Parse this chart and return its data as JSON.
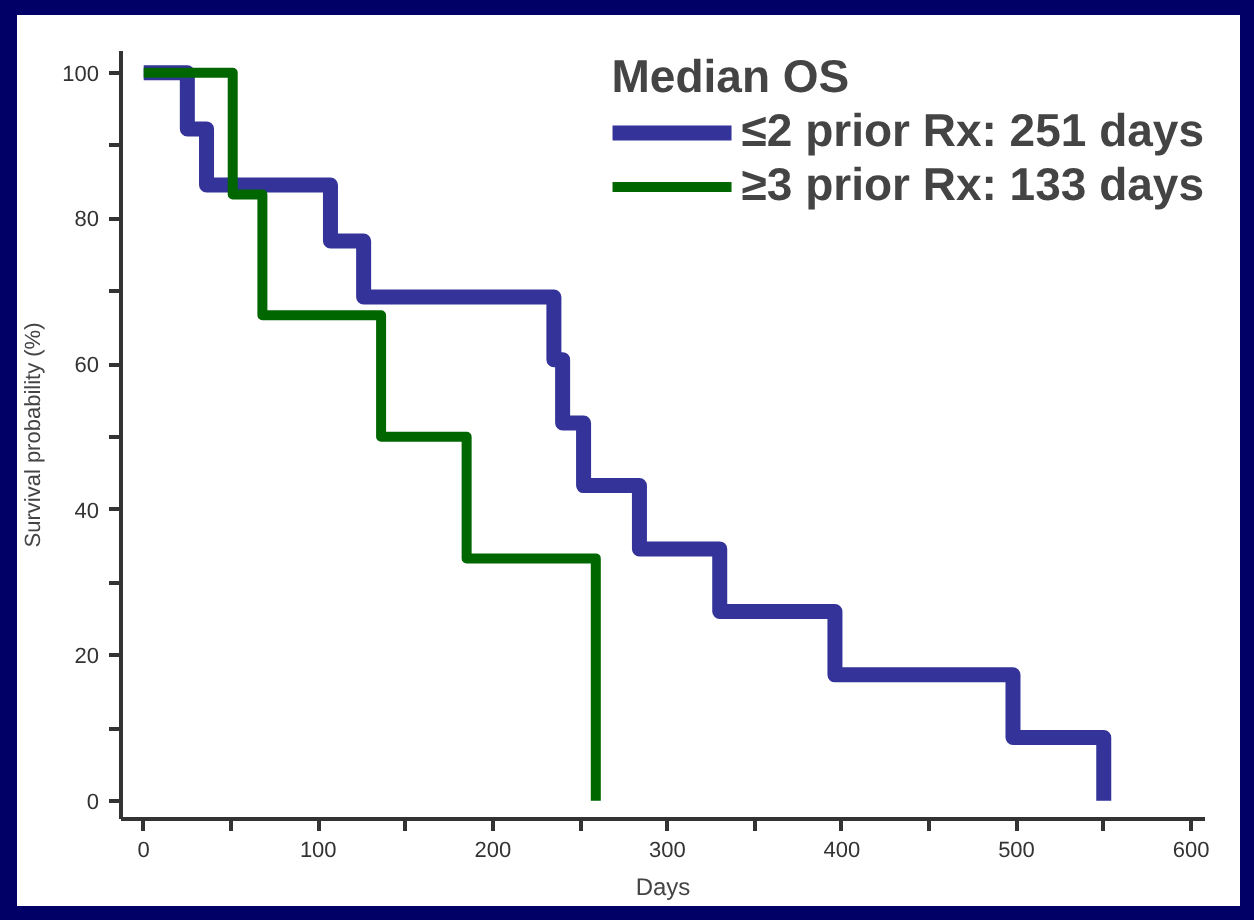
{
  "chart_data": {
    "type": "step",
    "xlabel": "Days",
    "ylabel": "Survival probability (%)",
    "legend_title": "Median OS",
    "xlim": [
      -13,
      608
    ],
    "ylim": [
      -2.5,
      103
    ],
    "xticks": [
      0,
      {
        "value": 50,
        "label": null
      },
      100,
      {
        "value": 150,
        "label": null
      },
      200,
      {
        "value": 250,
        "label": null
      },
      300,
      {
        "value": 350,
        "label": null
      },
      400,
      {
        "value": 450,
        "label": null
      },
      500,
      {
        "value": 550,
        "label": null
      },
      600
    ],
    "yticks": [
      0,
      {
        "value": 10,
        "label": null
      },
      20,
      {
        "value": 30,
        "label": null
      },
      40,
      {
        "value": 50,
        "label": null
      },
      60,
      {
        "value": 70,
        "label": null
      },
      80,
      {
        "value": 90,
        "label": null
      },
      100
    ],
    "grid": false,
    "legend": "top right",
    "marker": "none",
    "line_style": "solid",
    "series": [
      {
        "name": "≤2 prior Rx: 251 days",
        "color": "#333399",
        "x": [
          0,
          25,
          36,
          107,
          126,
          235,
          240,
          252,
          284,
          330,
          396,
          498,
          550
        ],
        "values": [
          100,
          92.3,
          84.6,
          76.9,
          69.2,
          60.6,
          51.9,
          43.3,
          34.6,
          26.0,
          17.3,
          8.7,
          0
        ]
      },
      {
        "name": "≥3 prior Rx: 133 days",
        "color": "#006600",
        "x": [
          0,
          51,
          68,
          136,
          185,
          259
        ],
        "values": [
          100,
          83.3,
          66.7,
          50,
          33.3,
          0
        ]
      }
    ]
  }
}
